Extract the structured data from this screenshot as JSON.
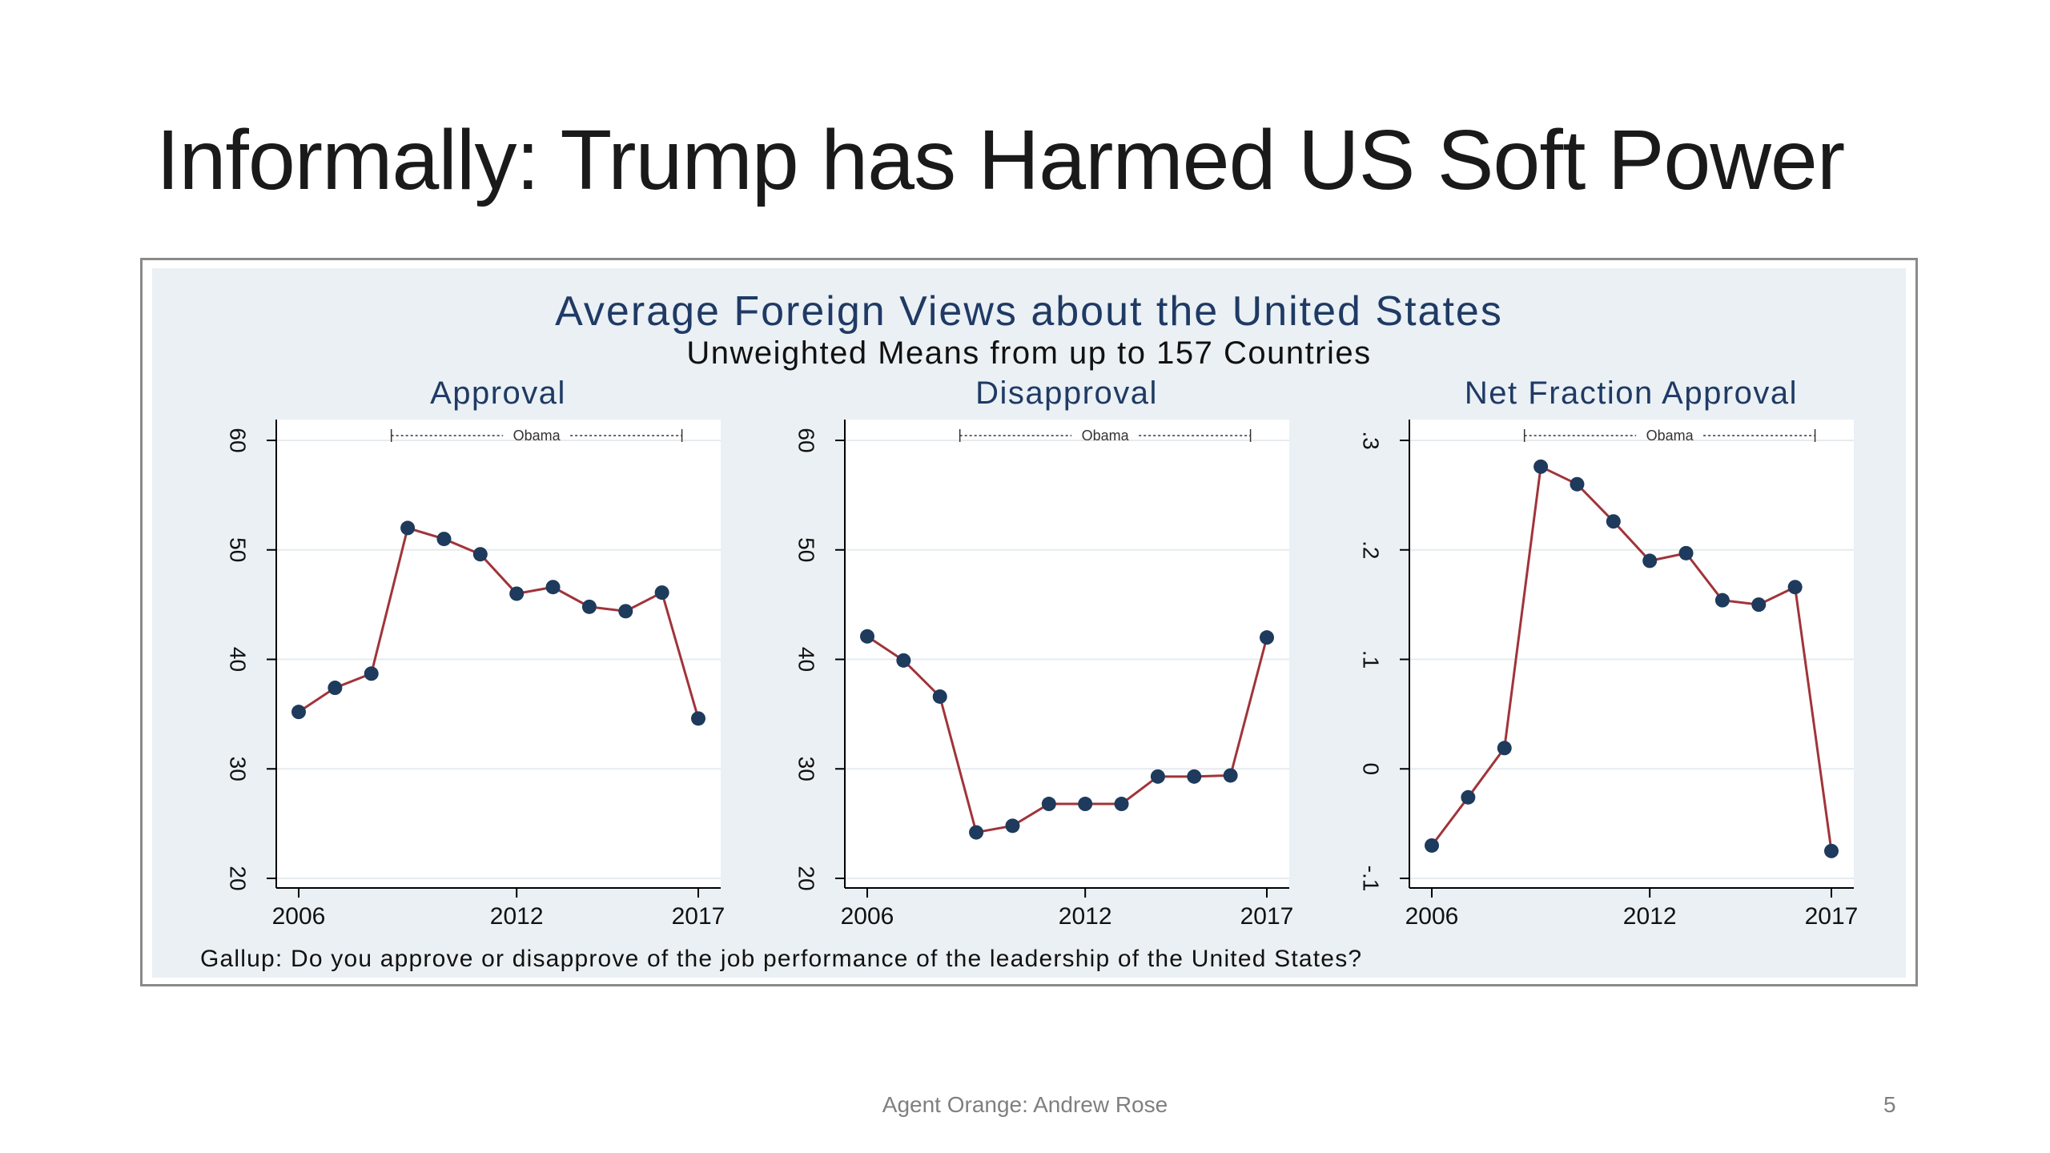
{
  "slide": {
    "title": "Informally: Trump has Harmed US Soft Power",
    "footer": "Agent Orange: Andrew Rose",
    "page_number": "5"
  },
  "figure": {
    "title": "Average Foreign Views about the United States",
    "subtitle": "Unweighted Means from up to 157 Countries",
    "note": "Gallup: Do you approve or disapprove of the job performance of the leadership of the United States?"
  },
  "colors": {
    "line": "#a0343a",
    "marker": "#1e3a5c",
    "title": "#1f3a64",
    "plot_bg": "#ffffff",
    "grid": "#e6ebef"
  },
  "chart_data": [
    {
      "type": "line",
      "title": "Approval",
      "x": [
        2006,
        2007,
        2008,
        2009,
        2010,
        2011,
        2012,
        2013,
        2014,
        2015,
        2016,
        2017
      ],
      "series": [
        {
          "values": [
            35.2,
            37.4,
            38.7,
            52.0,
            51.0,
            49.6,
            46.0,
            46.6,
            44.8,
            44.4,
            46.1,
            34.6
          ]
        }
      ],
      "xticks": [
        2006,
        2012,
        2017
      ],
      "xtick_labels": [
        "2006",
        "2012",
        "2017"
      ],
      "yticks": [
        20,
        30,
        40,
        50,
        60
      ],
      "ytick_labels": [
        "20",
        "30",
        "40",
        "50",
        "60"
      ],
      "ylim": [
        20,
        60
      ],
      "xlim": [
        2006,
        2017
      ],
      "grid": true,
      "annotation": {
        "label": "Obama",
        "from": 2009,
        "to": 2017
      }
    },
    {
      "type": "line",
      "title": "Disapproval",
      "x": [
        2006,
        2007,
        2008,
        2009,
        2010,
        2011,
        2012,
        2013,
        2014,
        2015,
        2016,
        2017
      ],
      "series": [
        {
          "values": [
            42.1,
            39.9,
            36.6,
            24.2,
            24.8,
            26.8,
            26.8,
            26.8,
            29.3,
            29.3,
            29.4,
            42.0
          ]
        }
      ],
      "xticks": [
        2006,
        2012,
        2017
      ],
      "xtick_labels": [
        "2006",
        "2012",
        "2017"
      ],
      "yticks": [
        20,
        30,
        40,
        50,
        60
      ],
      "ytick_labels": [
        "20",
        "30",
        "40",
        "50",
        "60"
      ],
      "ylim": [
        20,
        60
      ],
      "xlim": [
        2006,
        2017
      ],
      "grid": true,
      "annotation": {
        "label": "Obama",
        "from": 2009,
        "to": 2017
      }
    },
    {
      "type": "line",
      "title": "Net Fraction Approval",
      "x": [
        2006,
        2007,
        2008,
        2009,
        2010,
        2011,
        2012,
        2013,
        2014,
        2015,
        2016,
        2017
      ],
      "series": [
        {
          "values": [
            -0.07,
            -0.026,
            0.019,
            0.276,
            0.26,
            0.226,
            0.19,
            0.197,
            0.154,
            0.15,
            0.166,
            -0.075
          ]
        }
      ],
      "xticks": [
        2006,
        2012,
        2017
      ],
      "xtick_labels": [
        "2006",
        "2012",
        "2017"
      ],
      "yticks": [
        -0.1,
        0,
        0.1,
        0.2,
        0.3
      ],
      "ytick_labels": [
        "-.1",
        "0",
        ".1",
        ".2",
        ".3"
      ],
      "ylim": [
        -0.1,
        0.3
      ],
      "xlim": [
        2006,
        2017
      ],
      "grid": true,
      "annotation": {
        "label": "Obama",
        "from": 2009,
        "to": 2017
      }
    }
  ]
}
